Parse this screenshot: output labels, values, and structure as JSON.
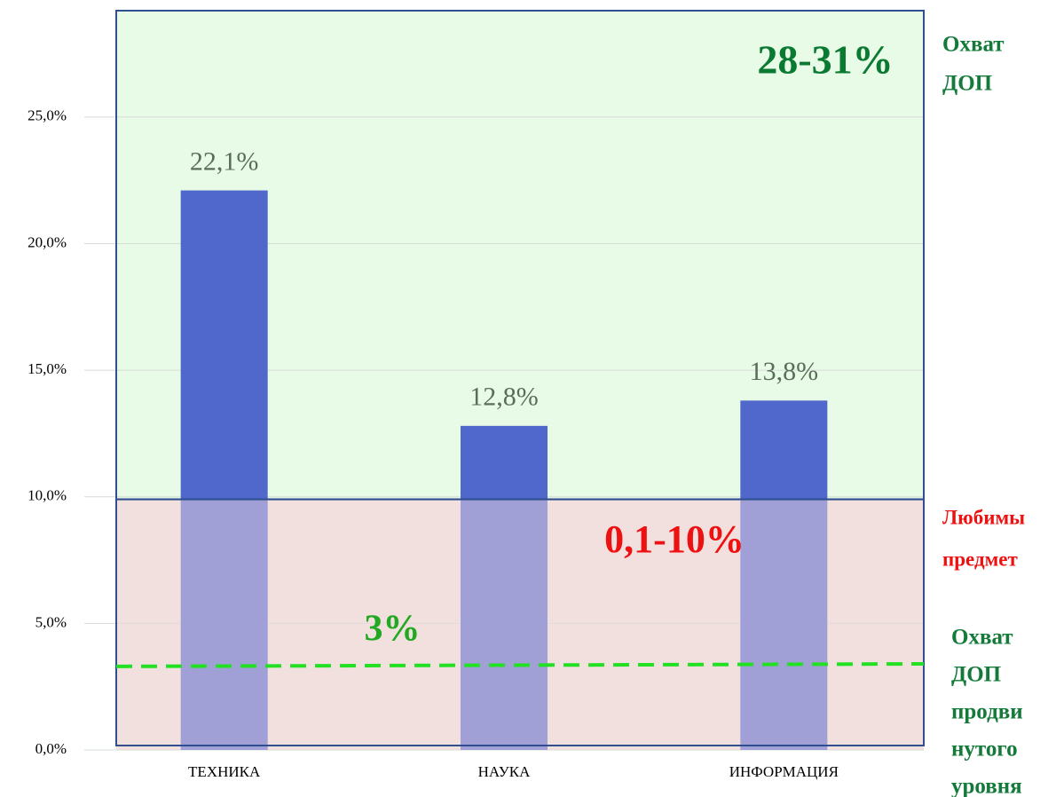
{
  "chart_data": {
    "type": "bar",
    "categories": [
      "ТЕХНИКА",
      "НАУКА",
      "ИНФОРМАЦИЯ"
    ],
    "values": [
      22.1,
      12.8,
      13.8
    ],
    "value_labels": [
      "22,1%",
      "12,8%",
      "13,8%"
    ],
    "color": "#5068cc",
    "ylim": [
      0,
      29.2
    ],
    "yticks": [
      {
        "value": 0,
        "label": "0,0%"
      },
      {
        "value": 5,
        "label": "5,0%"
      },
      {
        "value": 10,
        "label": "10,0%"
      },
      {
        "value": 15,
        "label": "15,0%"
      },
      {
        "value": 20,
        "label": "20,0%"
      },
      {
        "value": 25,
        "label": "25,0%"
      }
    ],
    "grid": true,
    "bands": [
      {
        "from": 9.9,
        "to": 29.2,
        "color": "#e8fbe6"
      },
      {
        "from": 0,
        "to": 9.9,
        "color": "#f2e8dc"
      }
    ],
    "reference_line": {
      "values": [
        3.3,
        3.4
      ],
      "color": "#22e022"
    },
    "annotations": [
      {
        "lines": [
          "28-31%"
        ],
        "color": "#0a7a32"
      },
      {
        "lines": [
          "0,1-10%"
        ],
        "color": "#ee1111"
      },
      {
        "lines": [
          "3%"
        ],
        "color": "#22a822"
      },
      {
        "lines": [
          "Охват",
          "ДОП"
        ],
        "color": "#137a3a"
      },
      {
        "lines": [
          "Любимы",
          "предмет"
        ],
        "color": "#ee1111"
      },
      {
        "lines": [
          "Охват",
          "ДОП",
          "продви",
          "нутого",
          "уровня"
        ],
        "color": "#137a3a"
      }
    ]
  }
}
